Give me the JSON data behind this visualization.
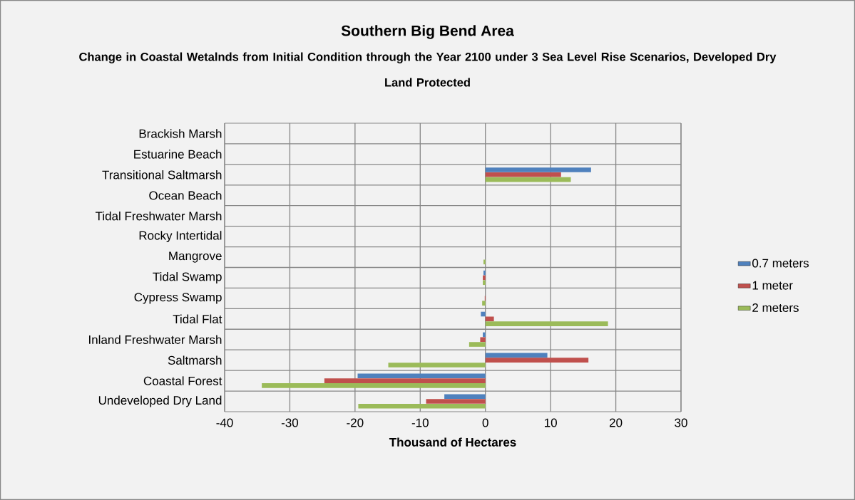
{
  "chart_data": {
    "type": "bar",
    "orientation": "horizontal",
    "title": "Southern Big Bend Area",
    "subtitle": "Change in Coastal Wetalnds from Initial Condition through the Year 2100 under 3 Sea Level Rise Scenarios, Developed Dry Land Protected",
    "xlabel": "Thousand of Hectares",
    "categories": [
      "Brackish Marsh",
      "Estuarine Beach",
      "Transitional Saltmarsh",
      "Ocean Beach",
      "Tidal Freshwater Marsh",
      "Rocky Intertidal",
      "Mangrove",
      "Tidal Swamp",
      "Cypress Swamp",
      "Tidal Flat",
      "Inland Freshwater Marsh",
      "Saltmarsh",
      "Coastal Forest",
      "Undeveloped Dry Land"
    ],
    "series": [
      {
        "name": "0.7 meters",
        "color": "#4f81bd",
        "values": [
          0,
          0,
          16.2,
          0,
          0,
          0,
          0,
          -0.3,
          0,
          -0.7,
          -0.4,
          9.5,
          -19.6,
          -6.3
        ]
      },
      {
        "name": "1 meter",
        "color": "#c0504d",
        "values": [
          0,
          0,
          11.6,
          0,
          0,
          0,
          0,
          -0.4,
          -0.1,
          1.3,
          -0.8,
          15.8,
          -24.7,
          -9.1
        ]
      },
      {
        "name": "2 meters",
        "color": "#9bbb59",
        "values": [
          0,
          0,
          13.1,
          0,
          0,
          0,
          -0.3,
          -0.4,
          -0.5,
          18.8,
          -2.5,
          -14.9,
          -34.3,
          -19.5
        ]
      }
    ],
    "xlim": [
      -40,
      30
    ],
    "xticks": [
      -40,
      -30,
      -20,
      -10,
      0,
      10,
      20,
      30
    ],
    "grid": true,
    "legend": "right"
  }
}
